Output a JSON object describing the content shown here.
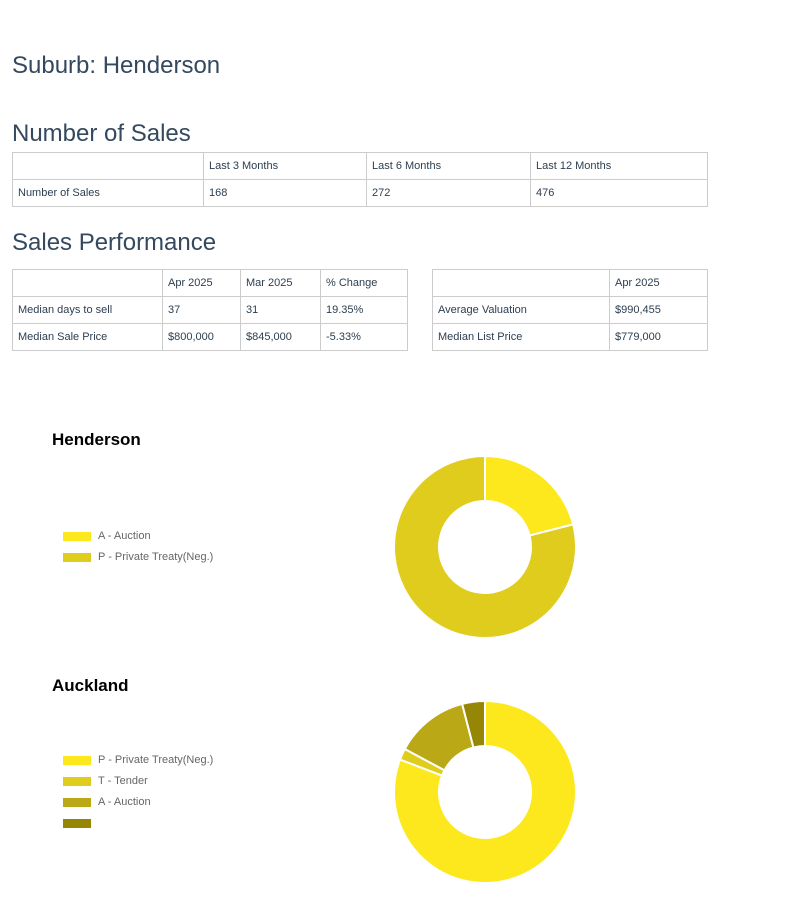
{
  "suburb_title": "Suburb: Henderson",
  "number_of_sales": {
    "title": "Number of Sales",
    "headers": [
      "",
      "Last 3 Months",
      "Last 6 Months",
      "Last 12 Months"
    ],
    "rows": [
      [
        "Number of Sales",
        "168",
        "272",
        "476"
      ]
    ]
  },
  "sales_performance": {
    "title": "Sales Performance",
    "left_table": {
      "headers": [
        "",
        "Apr 2025",
        "Mar 2025",
        "% Change"
      ],
      "rows": [
        [
          "Median days to sell",
          "37",
          "31",
          "19.35%"
        ],
        [
          "Median Sale Price",
          "$800,000",
          "$845,000",
          "-5.33%"
        ]
      ]
    },
    "right_table": {
      "headers": [
        "",
        "Apr 2025"
      ],
      "rows": [
        [
          "Average Valuation",
          "$990,455"
        ],
        [
          "Median List Price",
          "$779,000"
        ]
      ]
    }
  },
  "charts": {
    "henderson": {
      "title": "Henderson",
      "legend": [
        {
          "label": "A - Auction",
          "color": "#fce81c"
        },
        {
          "label": "P - Private Treaty(Neg.)",
          "color": "#e0cc1c"
        }
      ]
    },
    "auckland": {
      "title": "Auckland",
      "legend": [
        {
          "label": "P - Private Treaty(Neg.)",
          "color": "#fce81c"
        },
        {
          "label": "T - Tender",
          "color": "#e0cc1c"
        },
        {
          "label": "A - Auction",
          "color": "#bba816"
        },
        {
          "label": "",
          "color": "#958605"
        }
      ]
    }
  },
  "chart_data": [
    {
      "type": "pie",
      "title": "Henderson",
      "categories": [
        "A - Auction",
        "P - Private Treaty(Neg.)"
      ],
      "values": [
        21,
        79
      ],
      "colors": [
        "#fce81c",
        "#e0cc1c"
      ]
    },
    {
      "type": "pie",
      "title": "Auckland",
      "categories": [
        "P - Private Treaty(Neg.)",
        "T - Tender",
        "A - Auction",
        ""
      ],
      "values": [
        80,
        2,
        13,
        4
      ],
      "colors": [
        "#fce81c",
        "#e0cc1c",
        "#bba816",
        "#958605"
      ]
    }
  ]
}
